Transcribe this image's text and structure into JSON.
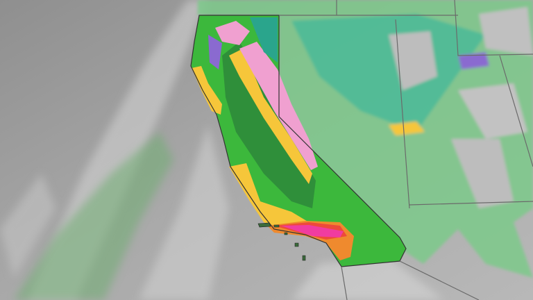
{
  "map": {
    "colors": {
      "background_cloud": "#9a9a9a",
      "cloud_light": "#c8c8c8",
      "light_green": "#7cc97c",
      "green": "#3cb83c",
      "dark_green": "#2f8f3a",
      "teal": "#2aa58c",
      "yellow": "#f6c63a",
      "orange": "#ef8a2e",
      "red": "#ee4a3a",
      "magenta": "#f03ca0",
      "pink": "#f0a0d0",
      "purple": "#8a6ad0",
      "border": "#6a6a6a"
    }
  }
}
